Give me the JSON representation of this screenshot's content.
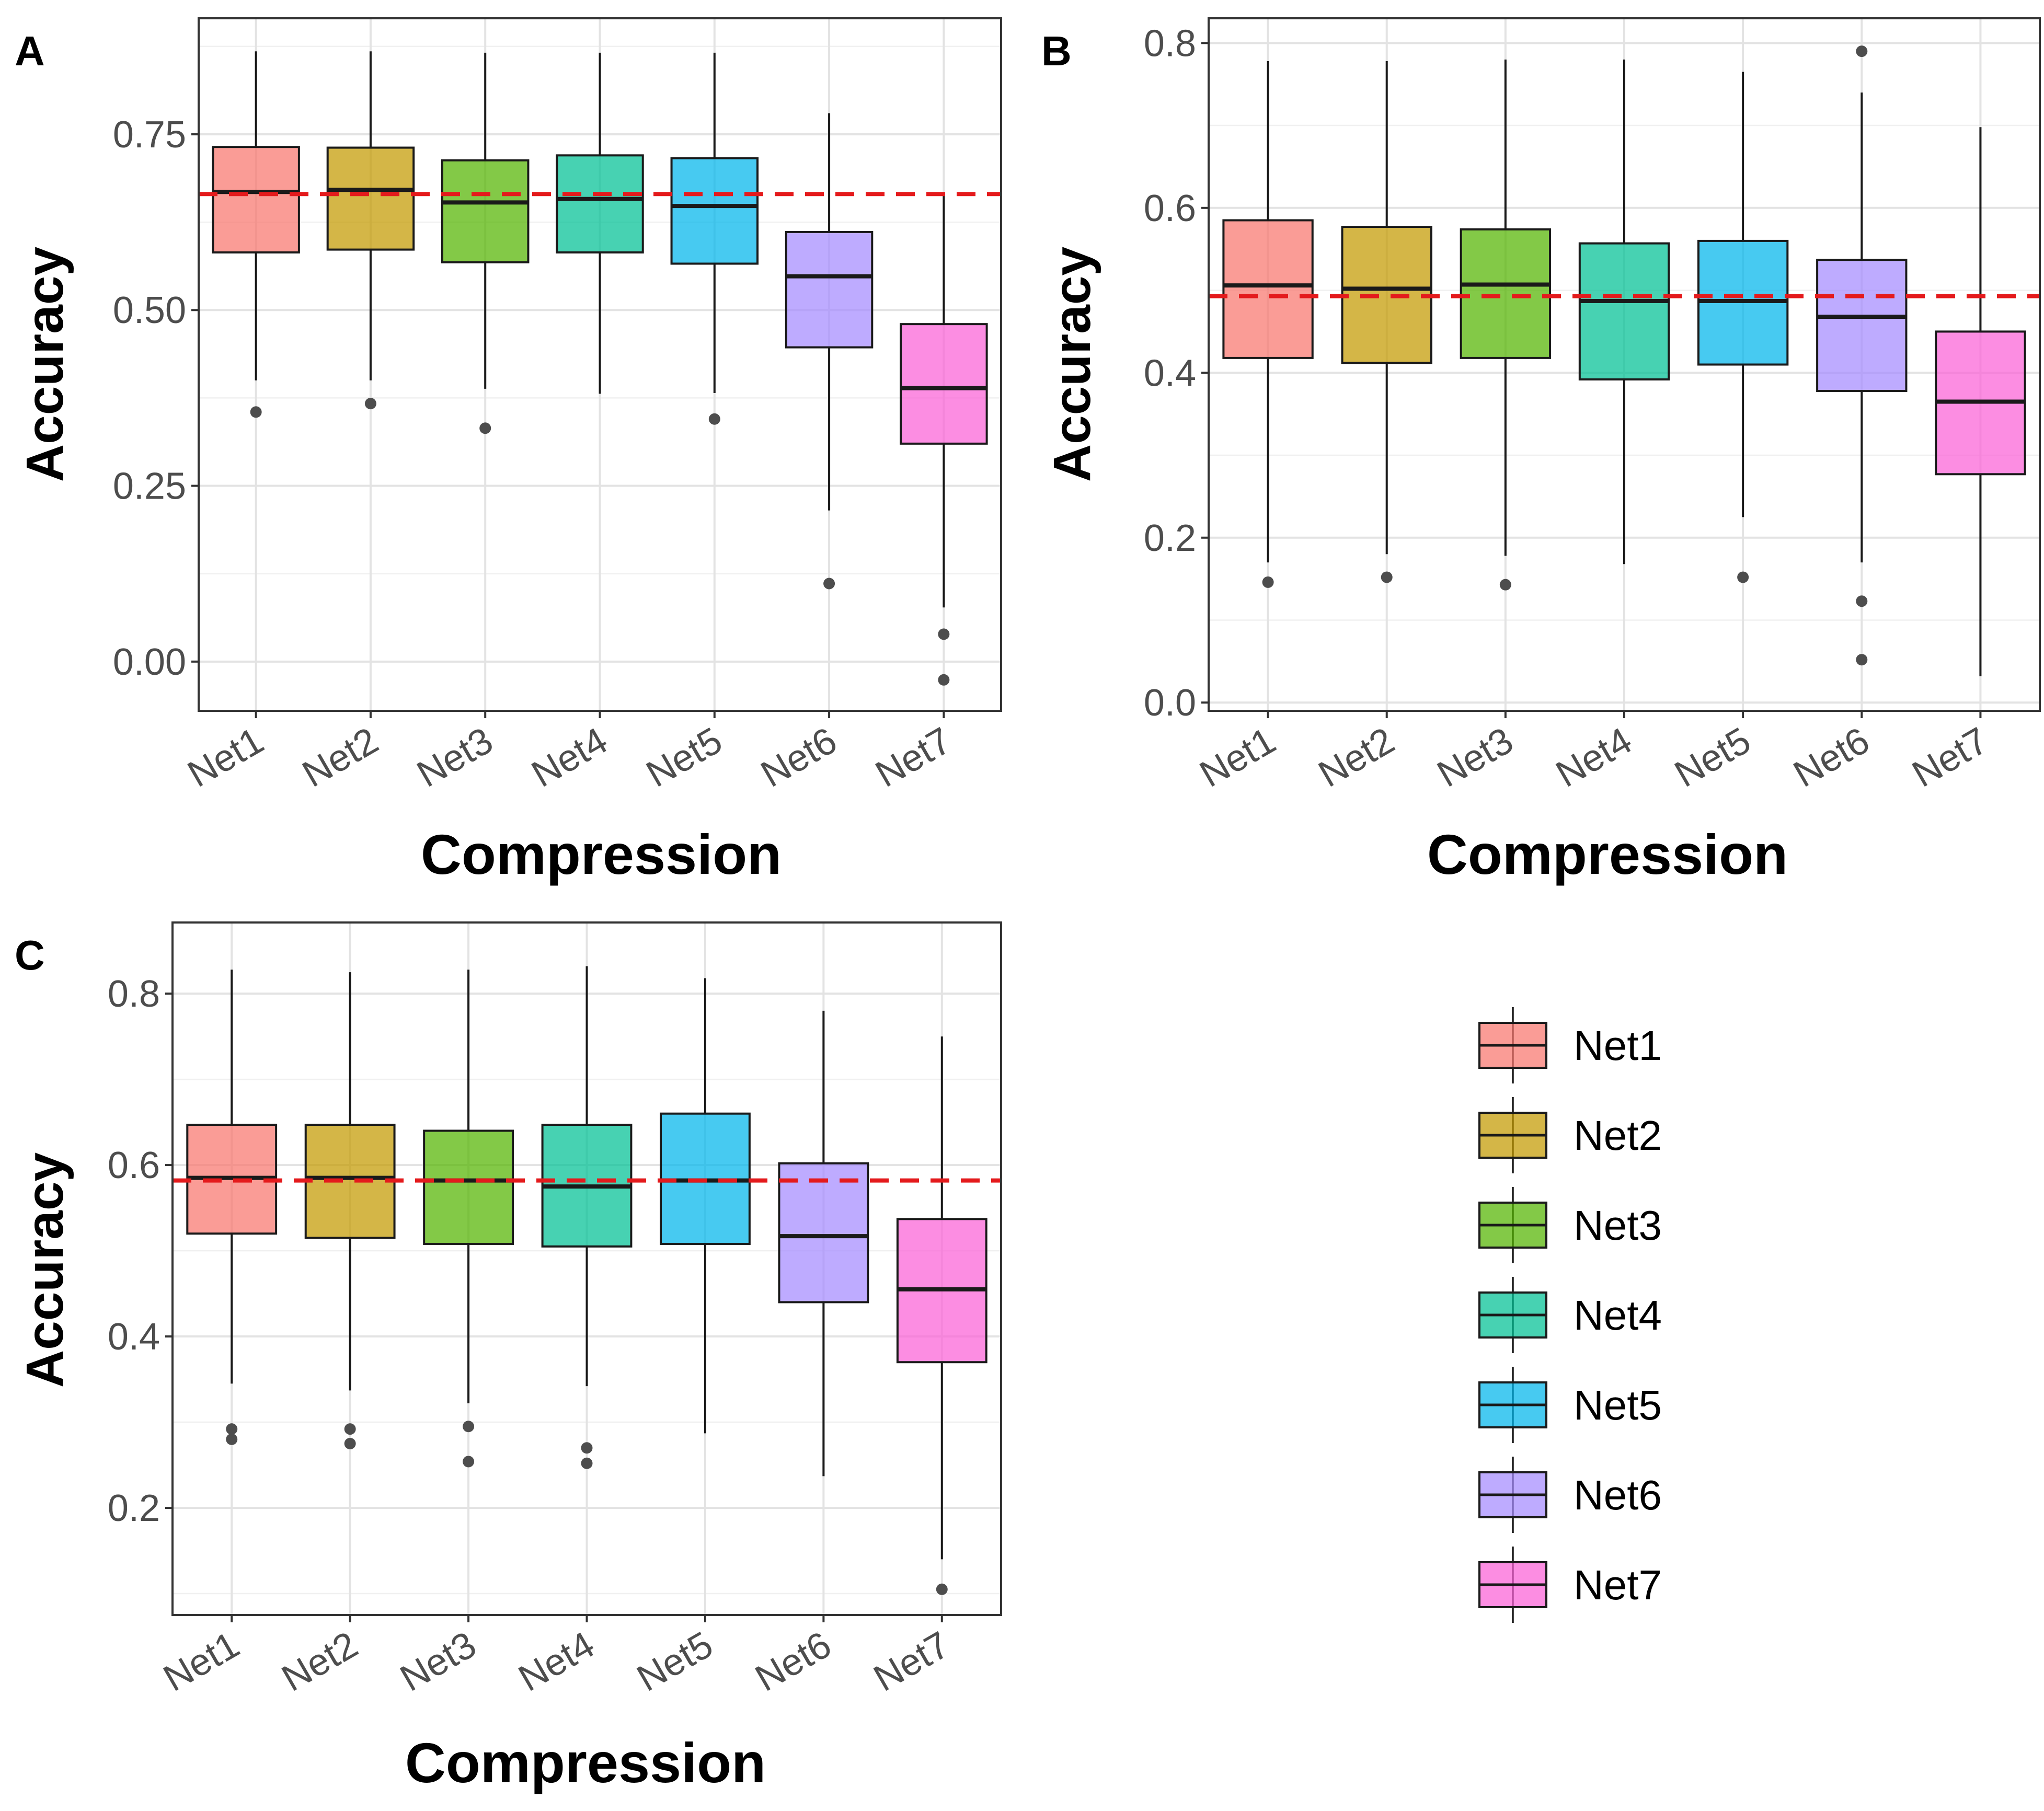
{
  "legend": {
    "items": [
      "Net1",
      "Net2",
      "Net3",
      "Net4",
      "Net5",
      "Net6",
      "Net7"
    ]
  },
  "colors": {
    "Net1": "#F8766D",
    "Net2": "#C49A00",
    "Net3": "#53B400",
    "Net4": "#00C094",
    "Net5": "#00B6EB",
    "Net6": "#A58AFF",
    "Net7": "#FB61D7",
    "reference_line": "#e41a1c",
    "outlier": "#4d4d4d"
  },
  "chart_data": [
    {
      "panel": "A",
      "type": "boxplot",
      "xlabel": "Compression",
      "ylabel": "Accuracy",
      "categories": [
        "Net1",
        "Net2",
        "Net3",
        "Net4",
        "Net5",
        "Net6",
        "Net7"
      ],
      "ylim": [
        -0.07,
        0.915
      ],
      "yticks": [
        0.0,
        0.25,
        0.5,
        0.75
      ],
      "ytick_labels": [
        "0.00",
        "0.25",
        "0.50",
        "0.75"
      ],
      "grid": true,
      "reference_line": 0.665,
      "boxes": [
        {
          "name": "Net1",
          "whisker_low": 0.4,
          "q1": 0.582,
          "median": 0.668,
          "q3": 0.732,
          "whisker_high": 0.868,
          "outliers": [
            0.355
          ]
        },
        {
          "name": "Net2",
          "whisker_low": 0.4,
          "q1": 0.586,
          "median": 0.671,
          "q3": 0.731,
          "whisker_high": 0.868,
          "outliers": [
            0.367
          ]
        },
        {
          "name": "Net3",
          "whisker_low": 0.388,
          "q1": 0.568,
          "median": 0.653,
          "q3": 0.713,
          "whisker_high": 0.866,
          "outliers": [
            0.332
          ]
        },
        {
          "name": "Net4",
          "whisker_low": 0.381,
          "q1": 0.582,
          "median": 0.658,
          "q3": 0.72,
          "whisker_high": 0.866,
          "outliers": []
        },
        {
          "name": "Net5",
          "whisker_low": 0.382,
          "q1": 0.566,
          "median": 0.648,
          "q3": 0.716,
          "whisker_high": 0.866,
          "outliers": [
            0.345
          ]
        },
        {
          "name": "Net6",
          "whisker_low": 0.215,
          "q1": 0.447,
          "median": 0.548,
          "q3": 0.611,
          "whisker_high": 0.78,
          "outliers": [
            0.111
          ]
        },
        {
          "name": "Net7",
          "whisker_low": 0.077,
          "q1": 0.31,
          "median": 0.389,
          "q3": 0.48,
          "whisker_high": 0.665,
          "outliers": [
            0.039,
            -0.026
          ]
        }
      ]
    },
    {
      "panel": "B",
      "type": "boxplot",
      "xlabel": "Compression",
      "ylabel": "Accuracy",
      "categories": [
        "Net1",
        "Net2",
        "Net3",
        "Net4",
        "Net5",
        "Net6",
        "Net7"
      ],
      "ylim": [
        -0.01,
        0.83
      ],
      "yticks": [
        0.0,
        0.2,
        0.4,
        0.6,
        0.8
      ],
      "ytick_labels": [
        "0.0",
        "0.2",
        "0.4",
        "0.6",
        "0.8"
      ],
      "grid": true,
      "reference_line": 0.493,
      "boxes": [
        {
          "name": "Net1",
          "whisker_low": 0.17,
          "q1": 0.418,
          "median": 0.506,
          "q3": 0.585,
          "whisker_high": 0.778,
          "outliers": [
            0.146
          ]
        },
        {
          "name": "Net2",
          "whisker_low": 0.18,
          "q1": 0.412,
          "median": 0.502,
          "q3": 0.577,
          "whisker_high": 0.778,
          "outliers": [
            0.152
          ]
        },
        {
          "name": "Net3",
          "whisker_low": 0.178,
          "q1": 0.418,
          "median": 0.507,
          "q3": 0.574,
          "whisker_high": 0.78,
          "outliers": [
            0.143
          ]
        },
        {
          "name": "Net4",
          "whisker_low": 0.168,
          "q1": 0.392,
          "median": 0.487,
          "q3": 0.557,
          "whisker_high": 0.78,
          "outliers": []
        },
        {
          "name": "Net5",
          "whisker_low": 0.225,
          "q1": 0.41,
          "median": 0.487,
          "q3": 0.56,
          "whisker_high": 0.765,
          "outliers": [
            0.152
          ]
        },
        {
          "name": "Net6",
          "whisker_low": 0.17,
          "q1": 0.378,
          "median": 0.468,
          "q3": 0.537,
          "whisker_high": 0.74,
          "outliers": [
            0.79,
            0.123,
            0.052
          ]
        },
        {
          "name": "Net7",
          "whisker_low": 0.032,
          "q1": 0.277,
          "median": 0.365,
          "q3": 0.45,
          "whisker_high": 0.698,
          "outliers": []
        }
      ]
    },
    {
      "panel": "C",
      "type": "boxplot",
      "xlabel": "Compression",
      "ylabel": "Accuracy",
      "categories": [
        "Net1",
        "Net2",
        "Net3",
        "Net4",
        "Net5",
        "Net6",
        "Net7"
      ],
      "ylim": [
        0.075,
        0.883
      ],
      "yticks": [
        0.2,
        0.4,
        0.6,
        0.8
      ],
      "ytick_labels": [
        "0.2",
        "0.4",
        "0.6",
        "0.8"
      ],
      "grid": true,
      "reference_line": 0.582,
      "boxes": [
        {
          "name": "Net1",
          "whisker_low": 0.345,
          "q1": 0.52,
          "median": 0.585,
          "q3": 0.647,
          "whisker_high": 0.828,
          "outliers": [
            0.292,
            0.28
          ]
        },
        {
          "name": "Net2",
          "whisker_low": 0.337,
          "q1": 0.515,
          "median": 0.585,
          "q3": 0.647,
          "whisker_high": 0.825,
          "outliers": [
            0.292,
            0.275
          ]
        },
        {
          "name": "Net3",
          "whisker_low": 0.322,
          "q1": 0.508,
          "median": 0.582,
          "q3": 0.64,
          "whisker_high": 0.828,
          "outliers": [
            0.295,
            0.254
          ]
        },
        {
          "name": "Net4",
          "whisker_low": 0.342,
          "q1": 0.505,
          "median": 0.575,
          "q3": 0.647,
          "whisker_high": 0.832,
          "outliers": [
            0.27,
            0.252
          ]
        },
        {
          "name": "Net5",
          "whisker_low": 0.287,
          "q1": 0.508,
          "median": 0.582,
          "q3": 0.66,
          "whisker_high": 0.818,
          "outliers": []
        },
        {
          "name": "Net6",
          "whisker_low": 0.237,
          "q1": 0.44,
          "median": 0.517,
          "q3": 0.602,
          "whisker_high": 0.78,
          "outliers": []
        },
        {
          "name": "Net7",
          "whisker_low": 0.14,
          "q1": 0.37,
          "median": 0.455,
          "q3": 0.537,
          "whisker_high": 0.75,
          "outliers": [
            0.105
          ]
        }
      ]
    }
  ]
}
